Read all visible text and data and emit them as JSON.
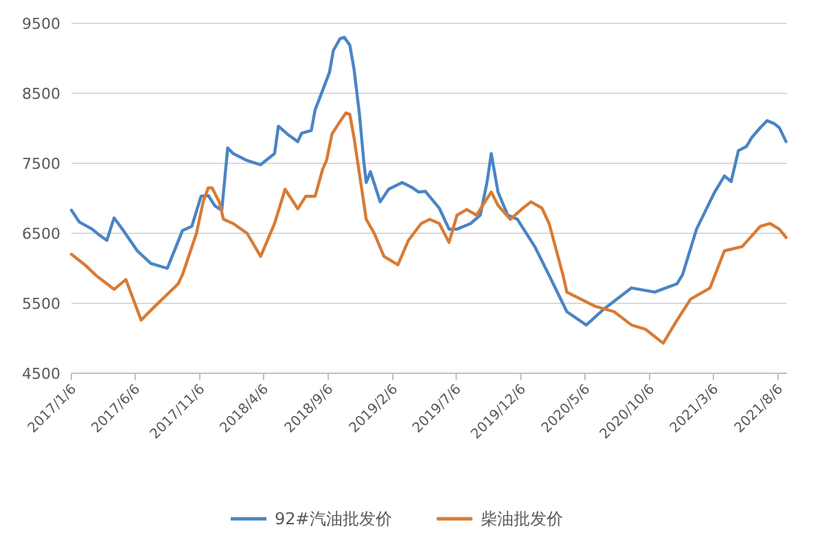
{
  "chart_data": {
    "type": "line",
    "series": [
      {
        "name": "92#汽油批发价",
        "color": "#4a84c4",
        "x": [
          "2017-01-06",
          "2017-01-25",
          "2017-02-24",
          "2017-03-12",
          "2017-03-31",
          "2017-04-17",
          "2017-05-09",
          "2017-06-11",
          "2017-07-13",
          "2017-08-21",
          "2017-09-26",
          "2017-10-18",
          "2017-11-09",
          "2017-11-26",
          "2017-12-12",
          "2017-12-28",
          "2018-01-11",
          "2018-01-24",
          "2018-02-26",
          "2018-03-30",
          "2018-05-02",
          "2018-05-11",
          "2018-06-03",
          "2018-06-26",
          "2018-07-05",
          "2018-07-28",
          "2018-08-06",
          "2018-08-16",
          "2018-09-09",
          "2018-09-18",
          "2018-10-04",
          "2018-10-14",
          "2018-10-27",
          "2018-11-06",
          "2018-11-19",
          "2018-11-29",
          "2018-12-05",
          "2018-12-15",
          "2019-01-07",
          "2019-01-27",
          "2019-02-28",
          "2019-03-22",
          "2019-04-08",
          "2019-04-24",
          "2019-05-27",
          "2019-06-19",
          "2019-07-08",
          "2019-08-09",
          "2019-09-01",
          "2019-09-17",
          "2019-09-27",
          "2019-10-13",
          "2019-11-05",
          "2019-11-28",
          "2020-01-09",
          "2020-02-11",
          "2020-03-24",
          "2020-05-09",
          "2020-06-20",
          "2020-08-24",
          "2020-10-18",
          "2020-12-10",
          "2020-12-23",
          "2021-01-25",
          "2021-03-09",
          "2021-04-01",
          "2021-04-17",
          "2021-05-04",
          "2021-05-23",
          "2021-06-05",
          "2021-06-25",
          "2021-07-11",
          "2021-07-27",
          "2021-08-09",
          "2021-08-25"
        ],
        "values": [
          6830,
          6660,
          6560,
          6480,
          6400,
          6720,
          6540,
          6250,
          6070,
          6000,
          6540,
          6600,
          7030,
          7040,
          6890,
          6830,
          7720,
          7640,
          7540,
          7480,
          7640,
          8030,
          7910,
          7810,
          7930,
          7970,
          8265,
          8420,
          8800,
          9110,
          9280,
          9300,
          9190,
          8850,
          8200,
          7540,
          7225,
          7380,
          6950,
          7130,
          7225,
          7160,
          7090,
          7100,
          6860,
          6560,
          6560,
          6640,
          6760,
          7230,
          7640,
          7090,
          6760,
          6700,
          6300,
          5900,
          5380,
          5190,
          5420,
          5720,
          5660,
          5780,
          5910,
          6560,
          7090,
          7320,
          7240,
          7680,
          7740,
          7870,
          8010,
          8110,
          8070,
          8010,
          7810
        ]
      },
      {
        "name": "柴油批发价",
        "color": "#d87b35",
        "x": [
          "2017-01-06",
          "2017-02-07",
          "2017-03-05",
          "2017-04-17",
          "2017-05-15",
          "2017-06-20",
          "2017-07-23",
          "2017-09-16",
          "2017-09-26",
          "2017-10-29",
          "2017-11-14",
          "2017-11-26",
          "2017-12-05",
          "2017-12-22",
          "2018-01-01",
          "2018-01-24",
          "2018-02-26",
          "2018-03-30",
          "2018-05-02",
          "2018-05-27",
          "2018-06-26",
          "2018-07-15",
          "2018-08-06",
          "2018-08-24",
          "2018-09-02",
          "2018-09-15",
          "2018-10-01",
          "2018-10-18",
          "2018-10-27",
          "2018-11-06",
          "2018-11-22",
          "2018-12-05",
          "2018-12-24",
          "2019-01-16",
          "2019-02-18",
          "2019-03-15",
          "2019-04-14",
          "2019-05-04",
          "2019-05-27",
          "2019-06-19",
          "2019-07-08",
          "2019-07-31",
          "2019-08-23",
          "2019-09-27",
          "2019-10-13",
          "2019-11-11",
          "2019-12-07",
          "2019-12-30",
          "2020-01-25",
          "2020-02-11",
          "2020-03-15",
          "2020-03-24",
          "2020-05-29",
          "2020-07-14",
          "2020-08-24",
          "2020-09-26",
          "2020-11-07",
          "2020-12-10",
          "2021-01-11",
          "2021-02-26",
          "2021-04-01",
          "2021-05-13",
          "2021-06-25",
          "2021-07-18",
          "2021-08-09",
          "2021-08-25"
        ],
        "values": [
          6200,
          6050,
          5900,
          5700,
          5840,
          5260,
          5460,
          5780,
          5910,
          6500,
          6950,
          7150,
          7150,
          6950,
          6700,
          6640,
          6500,
          6170,
          6640,
          7130,
          6850,
          7030,
          7030,
          7420,
          7540,
          7920,
          8070,
          8220,
          8200,
          7870,
          7225,
          6700,
          6500,
          6170,
          6050,
          6400,
          6640,
          6700,
          6640,
          6370,
          6760,
          6840,
          6760,
          7090,
          6900,
          6700,
          6840,
          6950,
          6860,
          6640,
          5900,
          5660,
          5460,
          5380,
          5190,
          5130,
          4930,
          5260,
          5560,
          5720,
          6250,
          6310,
          6600,
          6640,
          6560,
          6440
        ]
      }
    ],
    "xlim": [
      "2017-01-06",
      "2021-08-27"
    ],
    "xticks": [
      {
        "value": "2017-01-06",
        "label": "2017/1/6"
      },
      {
        "value": "2017-06-06",
        "label": "2017/6/6"
      },
      {
        "value": "2017-11-06",
        "label": "2017/11/6"
      },
      {
        "value": "2018-04-06",
        "label": "2018/4/6"
      },
      {
        "value": "2018-09-06",
        "label": "2018/9/6"
      },
      {
        "value": "2019-02-06",
        "label": "2019/2/6"
      },
      {
        "value": "2019-07-06",
        "label": "2019/7/6"
      },
      {
        "value": "2019-12-06",
        "label": "2019/12/6"
      },
      {
        "value": "2020-05-06",
        "label": "2020/5/6"
      },
      {
        "value": "2020-10-06",
        "label": "2020/10/6"
      },
      {
        "value": "2021-03-06",
        "label": "2021/3/6"
      },
      {
        "value": "2021-08-06",
        "label": "2021/8/6"
      }
    ],
    "ylim": [
      4500,
      9500
    ],
    "yticks": [
      4500,
      5500,
      6500,
      7500,
      8500,
      9500
    ],
    "grid": "y",
    "legend": "bottom"
  }
}
